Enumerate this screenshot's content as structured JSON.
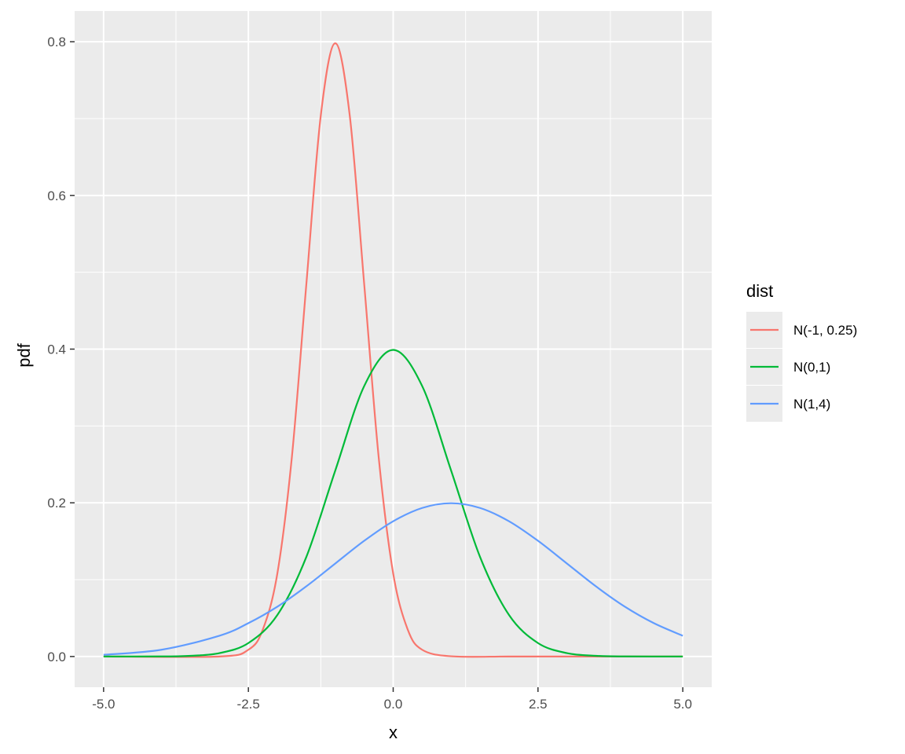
{
  "chart_data": {
    "type": "line",
    "title": "",
    "xlabel": "x",
    "ylabel": "pdf",
    "xlim": [
      -5.5,
      5.5
    ],
    "ylim": [
      -0.04,
      0.84
    ],
    "x_ticks": [
      -5.0,
      -2.5,
      0.0,
      2.5,
      5.0
    ],
    "x_tick_labels": [
      "-5.0",
      "-2.5",
      "0.0",
      "2.5",
      "5.0"
    ],
    "y_ticks": [
      0.0,
      0.2,
      0.4,
      0.6,
      0.8
    ],
    "y_tick_labels": [
      "0.0",
      "0.2",
      "0.4",
      "0.6",
      "0.8"
    ],
    "grid": true,
    "legend_title": "dist",
    "legend_placement": "right",
    "series": [
      {
        "name": "N(-1, 0.25)",
        "color": "#F8766D",
        "x": [
          -5.0,
          -3.0,
          -2.5,
          -2.25,
          -2.0,
          -1.75,
          -1.5,
          -1.25,
          -1.0,
          -0.75,
          -0.5,
          -0.25,
          0.0,
          0.25,
          0.5,
          1.0,
          2.0,
          3.0,
          5.0
        ],
        "y": [
          0.0,
          0.0,
          0.0088,
          0.0353,
          0.108,
          0.259,
          0.484,
          0.704,
          0.798,
          0.704,
          0.484,
          0.259,
          0.108,
          0.0353,
          0.0088,
          0.0003,
          0.0,
          0.0,
          0.0
        ]
      },
      {
        "name": "N(0,1)",
        "color": "#00BA38",
        "x": [
          -5.0,
          -4.0,
          -3.5,
          -3.0,
          -2.5,
          -2.0,
          -1.5,
          -1.0,
          -0.5,
          0.0,
          0.5,
          1.0,
          1.5,
          2.0,
          2.5,
          3.0,
          3.5,
          4.0,
          5.0
        ],
        "y": [
          0.0,
          0.0001,
          0.0009,
          0.0044,
          0.0175,
          0.054,
          0.1295,
          0.242,
          0.352,
          0.399,
          0.352,
          0.242,
          0.1295,
          0.054,
          0.0175,
          0.0044,
          0.0009,
          0.0001,
          0.0
        ]
      },
      {
        "name": "N(1,4)",
        "color": "#619CFF",
        "x": [
          -5.0,
          -4.0,
          -3.0,
          -2.5,
          -2.0,
          -1.5,
          -1.0,
          -0.5,
          0.0,
          0.5,
          1.0,
          1.5,
          2.0,
          2.5,
          3.0,
          3.5,
          4.0,
          4.5,
          5.0
        ],
        "y": [
          0.0022,
          0.0088,
          0.027,
          0.0434,
          0.0648,
          0.0913,
          0.121,
          0.1506,
          0.176,
          0.1933,
          0.1995,
          0.1933,
          0.176,
          0.1506,
          0.121,
          0.0913,
          0.0648,
          0.0434,
          0.027
        ]
      }
    ]
  }
}
